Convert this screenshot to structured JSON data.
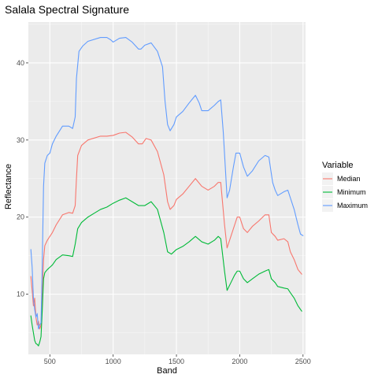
{
  "chart_data": {
    "type": "line",
    "title": "Salala Spectral Signature",
    "xlabel": "Band",
    "ylabel": "Reflectance",
    "xlim": [
      330,
      2520
    ],
    "ylim": [
      2.2,
      45.3
    ],
    "x_ticks": [
      500,
      1000,
      1500,
      2000,
      2500
    ],
    "y_ticks": [
      10,
      20,
      30,
      40
    ],
    "grid": true,
    "legend": {
      "title": "Variable",
      "position": "right"
    },
    "series": [
      {
        "name": "Median",
        "color": "#F8766D",
        "points": [
          [
            350,
            12.3
          ],
          [
            360,
            10.5
          ],
          [
            370,
            8.5
          ],
          [
            380,
            9.5
          ],
          [
            390,
            7.0
          ],
          [
            400,
            6.0
          ],
          [
            410,
            6.5
          ],
          [
            420,
            5.5
          ],
          [
            430,
            6.0
          ],
          [
            440,
            10.0
          ],
          [
            450,
            14.5
          ],
          [
            460,
            16.3
          ],
          [
            480,
            17.0
          ],
          [
            500,
            17.5
          ],
          [
            520,
            18.0
          ],
          [
            550,
            19.0
          ],
          [
            600,
            20.3
          ],
          [
            650,
            20.6
          ],
          [
            680,
            20.5
          ],
          [
            700,
            21.5
          ],
          [
            710,
            25.0
          ],
          [
            720,
            28.0
          ],
          [
            750,
            29.3
          ],
          [
            800,
            30.0
          ],
          [
            900,
            30.5
          ],
          [
            950,
            30.5
          ],
          [
            1000,
            30.6
          ],
          [
            1050,
            30.9
          ],
          [
            1100,
            31.0
          ],
          [
            1150,
            30.4
          ],
          [
            1200,
            29.5
          ],
          [
            1230,
            29.5
          ],
          [
            1260,
            30.2
          ],
          [
            1300,
            30.0
          ],
          [
            1350,
            28.5
          ],
          [
            1400,
            25.5
          ],
          [
            1430,
            22.0
          ],
          [
            1450,
            21.0
          ],
          [
            1480,
            21.5
          ],
          [
            1500,
            22.3
          ],
          [
            1550,
            23.0
          ],
          [
            1600,
            24.0
          ],
          [
            1650,
            25.0
          ],
          [
            1700,
            24.0
          ],
          [
            1750,
            23.5
          ],
          [
            1800,
            24.0
          ],
          [
            1830,
            24.5
          ],
          [
            1850,
            24.5
          ],
          [
            1880,
            19.0
          ],
          [
            1900,
            16.0
          ],
          [
            1930,
            17.5
          ],
          [
            1960,
            19.0
          ],
          [
            1980,
            20.0
          ],
          [
            2000,
            20.0
          ],
          [
            2030,
            18.5
          ],
          [
            2060,
            18.0
          ],
          [
            2100,
            18.8
          ],
          [
            2150,
            19.5
          ],
          [
            2200,
            20.3
          ],
          [
            2230,
            20.3
          ],
          [
            2250,
            18.0
          ],
          [
            2280,
            17.5
          ],
          [
            2300,
            17.0
          ],
          [
            2350,
            17.2
          ],
          [
            2380,
            16.8
          ],
          [
            2400,
            15.5
          ],
          [
            2430,
            14.5
          ],
          [
            2460,
            13.2
          ],
          [
            2490,
            12.6
          ]
        ]
      },
      {
        "name": "Minimum",
        "color": "#00BA38",
        "points": [
          [
            350,
            7.2
          ],
          [
            360,
            6.0
          ],
          [
            370,
            5.0
          ],
          [
            380,
            4.0
          ],
          [
            390,
            3.6
          ],
          [
            400,
            3.5
          ],
          [
            410,
            3.3
          ],
          [
            420,
            3.8
          ],
          [
            430,
            4.5
          ],
          [
            440,
            8.0
          ],
          [
            450,
            12.0
          ],
          [
            460,
            12.8
          ],
          [
            480,
            13.2
          ],
          [
            500,
            13.5
          ],
          [
            520,
            13.8
          ],
          [
            550,
            14.5
          ],
          [
            600,
            15.1
          ],
          [
            650,
            15.0
          ],
          [
            680,
            14.9
          ],
          [
            700,
            16.5
          ],
          [
            720,
            18.5
          ],
          [
            750,
            19.3
          ],
          [
            800,
            20.0
          ],
          [
            850,
            20.5
          ],
          [
            900,
            21.0
          ],
          [
            950,
            21.3
          ],
          [
            1000,
            21.8
          ],
          [
            1050,
            22.2
          ],
          [
            1100,
            22.5
          ],
          [
            1150,
            22.0
          ],
          [
            1200,
            21.5
          ],
          [
            1250,
            21.5
          ],
          [
            1300,
            22.0
          ],
          [
            1350,
            21.0
          ],
          [
            1400,
            18.0
          ],
          [
            1430,
            15.5
          ],
          [
            1460,
            15.2
          ],
          [
            1500,
            15.8
          ],
          [
            1550,
            16.2
          ],
          [
            1600,
            16.8
          ],
          [
            1650,
            17.5
          ],
          [
            1700,
            16.8
          ],
          [
            1750,
            16.5
          ],
          [
            1800,
            17.0
          ],
          [
            1830,
            17.5
          ],
          [
            1850,
            17.2
          ],
          [
            1880,
            13.0
          ],
          [
            1900,
            10.5
          ],
          [
            1930,
            11.5
          ],
          [
            1960,
            12.5
          ],
          [
            1980,
            13.0
          ],
          [
            2000,
            13.0
          ],
          [
            2030,
            12.0
          ],
          [
            2060,
            11.5
          ],
          [
            2100,
            12.0
          ],
          [
            2150,
            12.6
          ],
          [
            2200,
            13.0
          ],
          [
            2230,
            13.2
          ],
          [
            2250,
            12.0
          ],
          [
            2280,
            11.5
          ],
          [
            2300,
            11.0
          ],
          [
            2350,
            10.8
          ],
          [
            2380,
            10.7
          ],
          [
            2400,
            10.2
          ],
          [
            2430,
            9.5
          ],
          [
            2460,
            8.5
          ],
          [
            2490,
            7.8
          ]
        ]
      },
      {
        "name": "Maximum",
        "color": "#619CFF",
        "points": [
          [
            350,
            15.8
          ],
          [
            360,
            13.5
          ],
          [
            370,
            9.5
          ],
          [
            380,
            8.0
          ],
          [
            390,
            7.0
          ],
          [
            400,
            7.5
          ],
          [
            410,
            5.5
          ],
          [
            420,
            6.0
          ],
          [
            430,
            6.3
          ],
          [
            440,
            14.0
          ],
          [
            450,
            24.0
          ],
          [
            460,
            27.0
          ],
          [
            480,
            28.0
          ],
          [
            500,
            28.3
          ],
          [
            520,
            29.5
          ],
          [
            550,
            30.5
          ],
          [
            600,
            31.8
          ],
          [
            650,
            31.8
          ],
          [
            680,
            31.5
          ],
          [
            700,
            33.0
          ],
          [
            710,
            38.0
          ],
          [
            730,
            41.5
          ],
          [
            760,
            42.2
          ],
          [
            800,
            42.8
          ],
          [
            900,
            43.3
          ],
          [
            950,
            43.3
          ],
          [
            980,
            43.0
          ],
          [
            1000,
            42.7
          ],
          [
            1050,
            43.2
          ],
          [
            1100,
            43.3
          ],
          [
            1150,
            42.7
          ],
          [
            1200,
            41.8
          ],
          [
            1220,
            41.8
          ],
          [
            1250,
            42.3
          ],
          [
            1300,
            42.6
          ],
          [
            1350,
            41.5
          ],
          [
            1390,
            39.5
          ],
          [
            1410,
            35.0
          ],
          [
            1430,
            32.0
          ],
          [
            1450,
            31.2
          ],
          [
            1480,
            32.0
          ],
          [
            1500,
            33.0
          ],
          [
            1550,
            33.7
          ],
          [
            1600,
            34.8
          ],
          [
            1650,
            35.8
          ],
          [
            1680,
            34.8
          ],
          [
            1700,
            33.8
          ],
          [
            1750,
            33.8
          ],
          [
            1800,
            34.5
          ],
          [
            1830,
            35.0
          ],
          [
            1850,
            35.2
          ],
          [
            1870,
            31.0
          ],
          [
            1900,
            22.5
          ],
          [
            1920,
            23.5
          ],
          [
            1950,
            26.5
          ],
          [
            1970,
            28.3
          ],
          [
            2000,
            28.3
          ],
          [
            2030,
            26.5
          ],
          [
            2060,
            25.3
          ],
          [
            2100,
            26.0
          ],
          [
            2150,
            27.3
          ],
          [
            2200,
            28.0
          ],
          [
            2230,
            27.8
          ],
          [
            2260,
            24.5
          ],
          [
            2280,
            23.5
          ],
          [
            2300,
            22.8
          ],
          [
            2350,
            23.3
          ],
          [
            2380,
            23.5
          ],
          [
            2400,
            22.5
          ],
          [
            2430,
            21.0
          ],
          [
            2460,
            19.0
          ],
          [
            2480,
            17.8
          ],
          [
            2500,
            17.6
          ]
        ]
      }
    ]
  }
}
